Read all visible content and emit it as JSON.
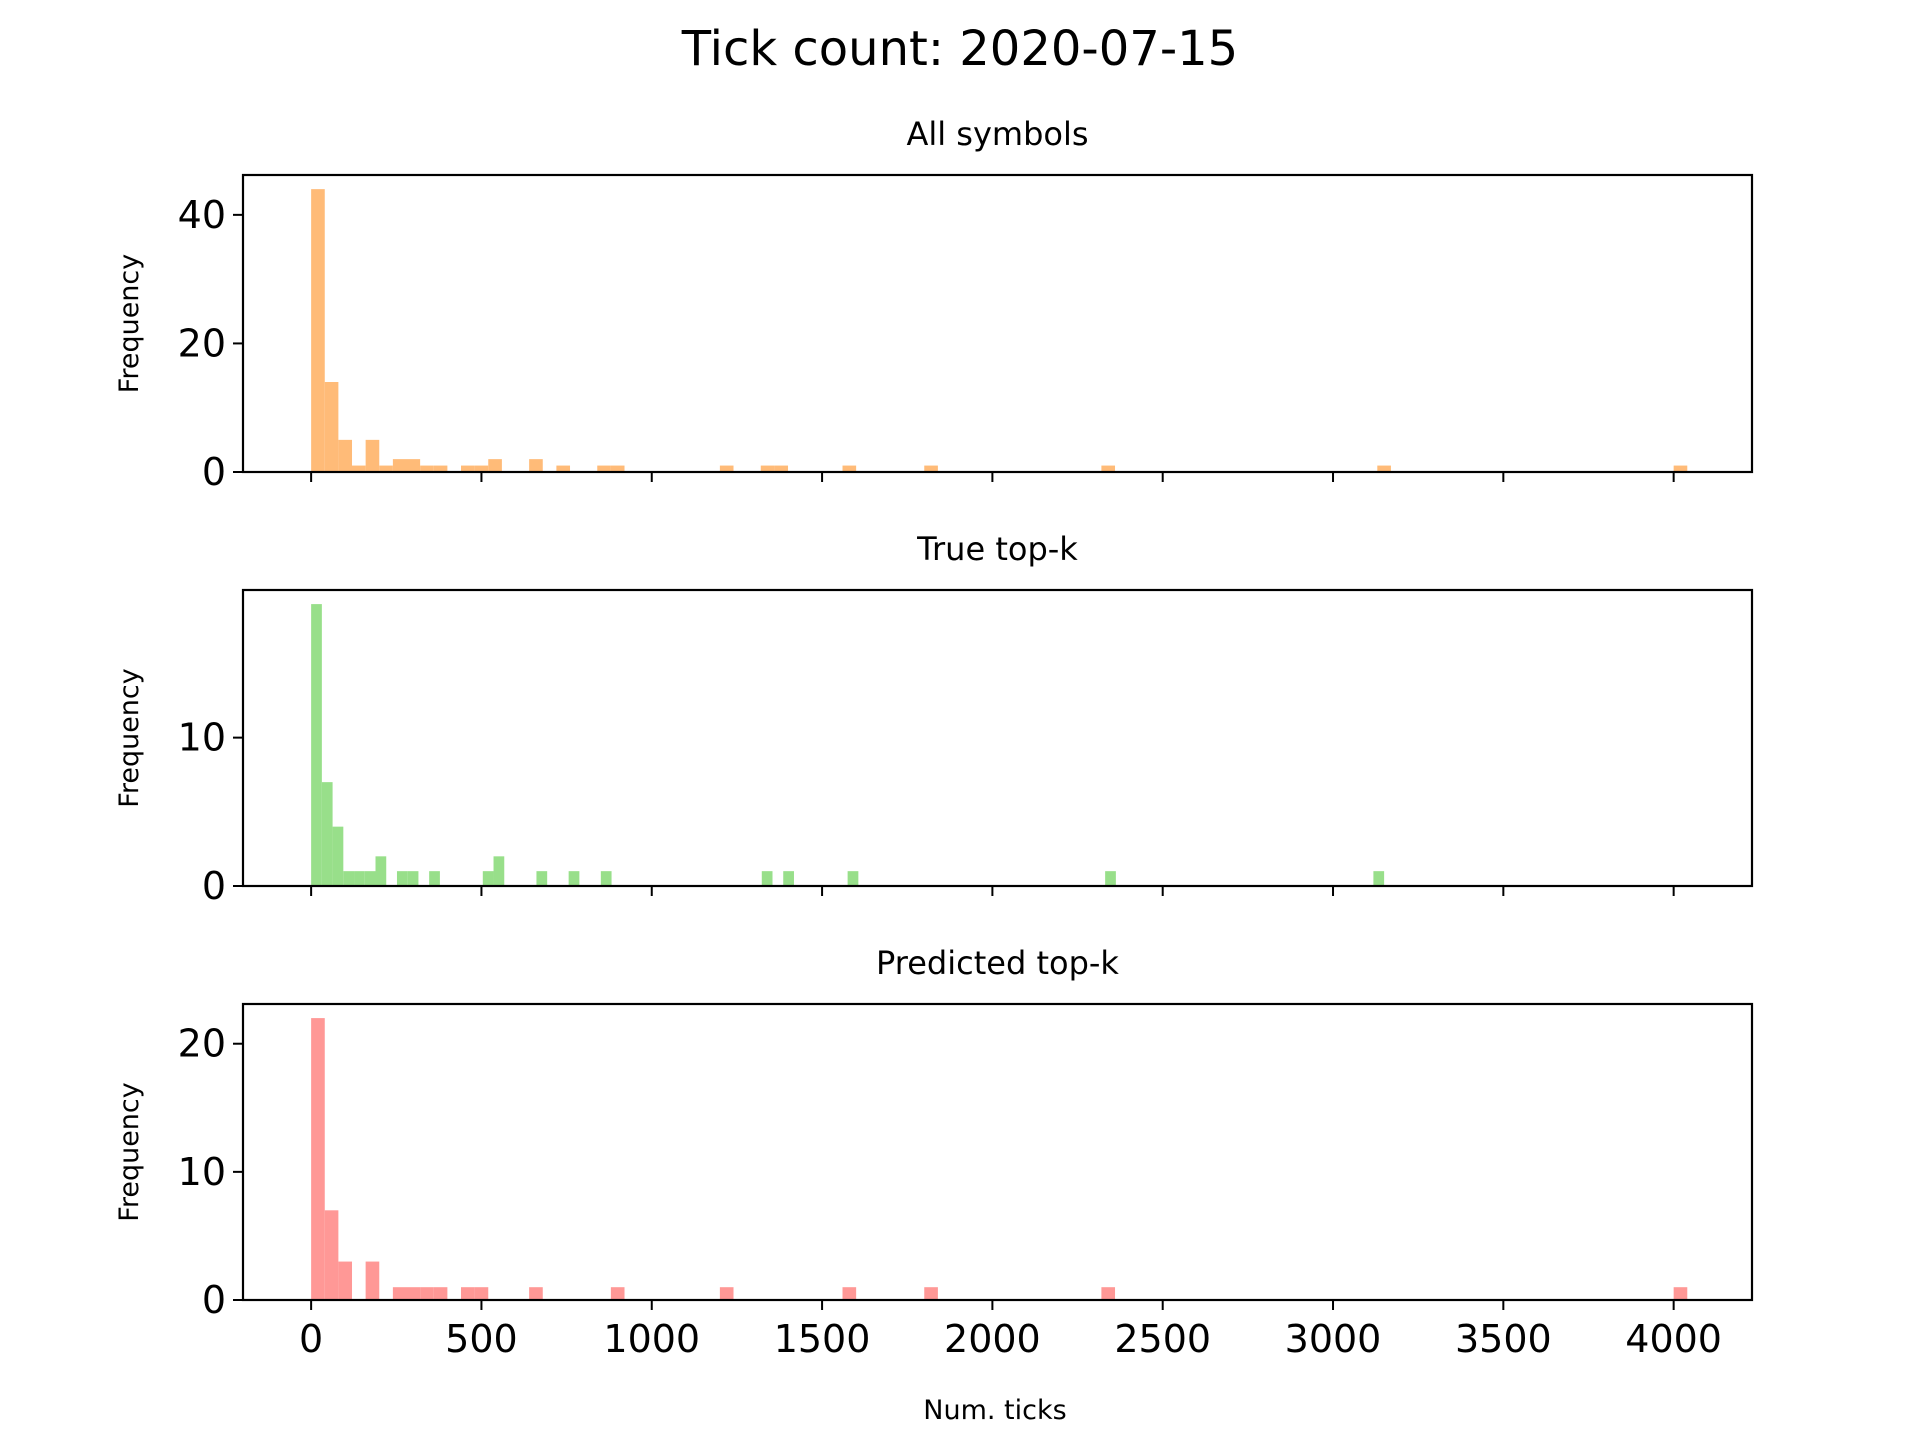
{
  "figure": {
    "title": "Tick count: 2020-07-15",
    "xlabel": "Num. ticks"
  },
  "chart_data": [
    {
      "type": "bar",
      "title": "All symbols",
      "xlabel": "",
      "ylabel": "Frequency",
      "color": "#ffbb78",
      "xlim": [
        -200,
        4230
      ],
      "ylim": [
        0,
        46.2
      ],
      "x_ticks": [
        0,
        500,
        1000,
        1500,
        2000,
        2500,
        3000,
        3500,
        4000
      ],
      "x_tick_labels_shown": false,
      "y_ticks": [
        0,
        20,
        40
      ],
      "bin_width": 40,
      "bins": [
        {
          "x": 0,
          "count": 44
        },
        {
          "x": 40,
          "count": 14
        },
        {
          "x": 80,
          "count": 5
        },
        {
          "x": 120,
          "count": 1
        },
        {
          "x": 160,
          "count": 5
        },
        {
          "x": 200,
          "count": 1
        },
        {
          "x": 240,
          "count": 2
        },
        {
          "x": 280,
          "count": 2
        },
        {
          "x": 320,
          "count": 1
        },
        {
          "x": 360,
          "count": 1
        },
        {
          "x": 440,
          "count": 1
        },
        {
          "x": 480,
          "count": 1
        },
        {
          "x": 520,
          "count": 2
        },
        {
          "x": 640,
          "count": 2
        },
        {
          "x": 720,
          "count": 1
        },
        {
          "x": 840,
          "count": 1
        },
        {
          "x": 880,
          "count": 1
        },
        {
          "x": 1200,
          "count": 1
        },
        {
          "x": 1320,
          "count": 1
        },
        {
          "x": 1360,
          "count": 1
        },
        {
          "x": 1560,
          "count": 1
        },
        {
          "x": 1800,
          "count": 1
        },
        {
          "x": 2320,
          "count": 1
        },
        {
          "x": 3130,
          "count": 1
        },
        {
          "x": 4000,
          "count": 1
        }
      ]
    },
    {
      "type": "bar",
      "title": "True top-k",
      "xlabel": "",
      "ylabel": "Frequency",
      "color": "#98df8a",
      "xlim": [
        -200,
        4230
      ],
      "ylim": [
        0,
        19.95
      ],
      "x_ticks": [
        0,
        500,
        1000,
        1500,
        2000,
        2500,
        3000,
        3500,
        4000
      ],
      "x_tick_labels_shown": false,
      "y_ticks": [
        0,
        10
      ],
      "bin_width": 31.5,
      "bins": [
        {
          "x": 0,
          "count": 19
        },
        {
          "x": 31.5,
          "count": 7
        },
        {
          "x": 63,
          "count": 4
        },
        {
          "x": 94.5,
          "count": 1
        },
        {
          "x": 126,
          "count": 1
        },
        {
          "x": 157.5,
          "count": 1
        },
        {
          "x": 189,
          "count": 2
        },
        {
          "x": 252,
          "count": 1
        },
        {
          "x": 283.5,
          "count": 1
        },
        {
          "x": 346.5,
          "count": 1
        },
        {
          "x": 504,
          "count": 1
        },
        {
          "x": 535.5,
          "count": 2
        },
        {
          "x": 661.5,
          "count": 1
        },
        {
          "x": 756,
          "count": 1
        },
        {
          "x": 850.5,
          "count": 1
        },
        {
          "x": 1323,
          "count": 1
        },
        {
          "x": 1386,
          "count": 1
        },
        {
          "x": 1575,
          "count": 1
        },
        {
          "x": 2331,
          "count": 1
        },
        {
          "x": 3118.5,
          "count": 1
        }
      ]
    },
    {
      "type": "bar",
      "title": "Predicted top-k",
      "xlabel": "Num. ticks",
      "ylabel": "Frequency",
      "color": "#ff9896",
      "xlim": [
        -200,
        4230
      ],
      "ylim": [
        0,
        23.1
      ],
      "x_ticks": [
        0,
        500,
        1000,
        1500,
        2000,
        2500,
        3000,
        3500,
        4000
      ],
      "x_tick_labels": [
        "0",
        "500",
        "1000",
        "1500",
        "2000",
        "2500",
        "3000",
        "3500",
        "4000"
      ],
      "x_tick_labels_shown": true,
      "y_ticks": [
        0,
        10,
        20
      ],
      "bin_width": 40,
      "bins": [
        {
          "x": 0,
          "count": 22
        },
        {
          "x": 40,
          "count": 7
        },
        {
          "x": 80,
          "count": 3
        },
        {
          "x": 160,
          "count": 3
        },
        {
          "x": 240,
          "count": 1
        },
        {
          "x": 280,
          "count": 1
        },
        {
          "x": 320,
          "count": 1
        },
        {
          "x": 360,
          "count": 1
        },
        {
          "x": 440,
          "count": 1
        },
        {
          "x": 480,
          "count": 1
        },
        {
          "x": 640,
          "count": 1
        },
        {
          "x": 880,
          "count": 1
        },
        {
          "x": 1200,
          "count": 1
        },
        {
          "x": 1560,
          "count": 1
        },
        {
          "x": 1800,
          "count": 1
        },
        {
          "x": 2320,
          "count": 1
        },
        {
          "x": 4000,
          "count": 1
        }
      ]
    }
  ]
}
